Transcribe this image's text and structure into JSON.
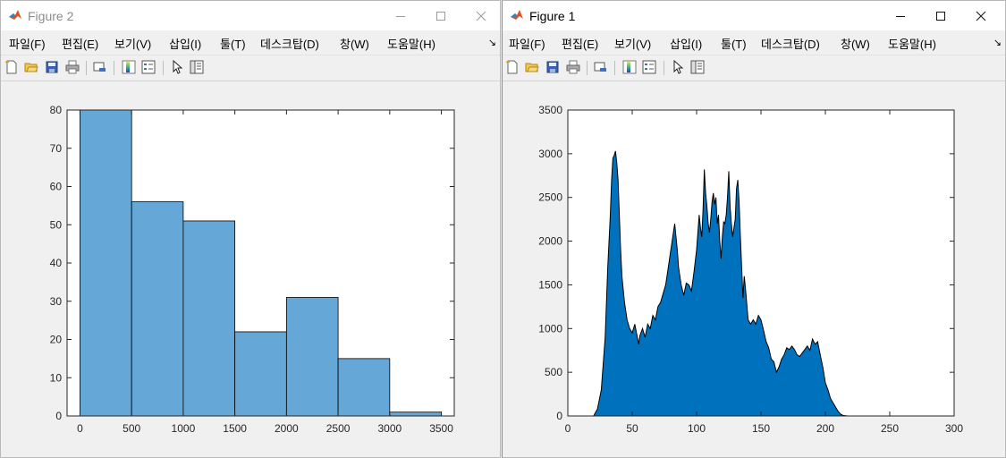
{
  "windows": [
    {
      "title": "Figure 2",
      "menu": [
        "파일(F)",
        "편집(E)",
        "보기(V)",
        "삽입(I)",
        "툴(T)",
        "데스크탑(D)",
        "창(W)",
        "도움말(H)"
      ],
      "toolbar_icons": [
        "new-figure-icon",
        "open-file-icon",
        "save-icon",
        "print-icon",
        "link-plot-icon",
        "insert-colorbar-icon",
        "insert-legend-icon",
        "edit-plot-icon",
        "property-inspector-icon"
      ]
    },
    {
      "title": "Figure 1",
      "menu": [
        "파일(F)",
        "편집(E)",
        "보기(V)",
        "삽입(I)",
        "툴(T)",
        "데스크탑(D)",
        "창(W)",
        "도움말(H)"
      ],
      "toolbar_icons": [
        "new-figure-icon",
        "open-file-icon",
        "save-icon",
        "print-icon",
        "link-plot-icon",
        "insert-colorbar-icon",
        "insert-legend-icon",
        "edit-plot-icon",
        "property-inspector-icon"
      ]
    }
  ],
  "colors": {
    "bar_fill": "#65a8d7",
    "area_fill": "#0072bd",
    "axis": "#262626"
  },
  "chart_data": [
    {
      "type": "bar",
      "figure": "Figure 2",
      "bin_edges": [
        0,
        500,
        1000,
        1500,
        2000,
        2500,
        3000,
        3500
      ],
      "values": [
        80,
        56,
        51,
        22,
        31,
        15,
        1
      ],
      "xlim": [
        -125,
        3625
      ],
      "ylim": [
        0,
        80
      ],
      "xticks": [
        0,
        500,
        1000,
        1500,
        2000,
        2500,
        3000,
        3500
      ],
      "yticks": [
        0,
        10,
        20,
        30,
        40,
        50,
        60,
        70,
        80
      ],
      "grid": false
    },
    {
      "type": "area",
      "figure": "Figure 1",
      "x": [
        0,
        20,
        23,
        26,
        29,
        31,
        33,
        34,
        35,
        36,
        37,
        38,
        39,
        40,
        41,
        42,
        44,
        46,
        48,
        50,
        52,
        54,
        55,
        56,
        58,
        60,
        62,
        64,
        66,
        68,
        70,
        72,
        74,
        76,
        78,
        80,
        82,
        83,
        84,
        85,
        86,
        88,
        90,
        92,
        94,
        96,
        98,
        100,
        101,
        102,
        103,
        104,
        105,
        106,
        107,
        108,
        109,
        110,
        111,
        112,
        113,
        114,
        115,
        116,
        117,
        118,
        119,
        120,
        121,
        122,
        123,
        124,
        125,
        126,
        127,
        128,
        129,
        130,
        131,
        132,
        133,
        134,
        135,
        136,
        137,
        138,
        140,
        142,
        144,
        146,
        148,
        150,
        152,
        154,
        156,
        158,
        160,
        162,
        164,
        166,
        168,
        170,
        172,
        174,
        176,
        178,
        180,
        182,
        184,
        186,
        188,
        190,
        192,
        194,
        196,
        198,
        200,
        202,
        204,
        206,
        208,
        210,
        212,
        214,
        216,
        218,
        220,
        222,
        224,
        226,
        228,
        230,
        235,
        240,
        260,
        280,
        300
      ],
      "y": [
        0,
        0,
        80,
        300,
        900,
        1700,
        2300,
        2700,
        2950,
        2980,
        3030,
        2900,
        2700,
        2300,
        1900,
        1600,
        1300,
        1100,
        1000,
        950,
        1050,
        900,
        820,
        920,
        1000,
        900,
        1050,
        1000,
        1150,
        1100,
        1250,
        1300,
        1400,
        1500,
        1700,
        1900,
        2100,
        2200,
        2050,
        1900,
        1700,
        1500,
        1380,
        1520,
        1500,
        1430,
        1650,
        1900,
        2100,
        2300,
        2150,
        2050,
        2350,
        2820,
        2550,
        2400,
        2200,
        2100,
        2250,
        2450,
        2550,
        2420,
        2500,
        2200,
        2300,
        2000,
        1800,
        2050,
        2220,
        2200,
        2300,
        2500,
        2800,
        2400,
        2200,
        2050,
        2150,
        2250,
        2600,
        2700,
        2450,
        2050,
        1700,
        1350,
        1600,
        1450,
        1100,
        1050,
        1100,
        1050,
        1150,
        1100,
        980,
        850,
        780,
        650,
        620,
        500,
        560,
        650,
        700,
        780,
        760,
        800,
        760,
        700,
        680,
        720,
        760,
        800,
        750,
        880,
        820,
        850,
        700,
        560,
        380,
        300,
        200,
        150,
        100,
        50,
        20,
        5,
        2,
        0,
        0,
        0,
        0,
        0,
        0,
        0,
        0,
        0,
        0,
        0,
        0
      ],
      "xlim": [
        0,
        300
      ],
      "ylim": [
        0,
        3500
      ],
      "xticks": [
        0,
        50,
        100,
        150,
        200,
        250,
        300
      ],
      "yticks": [
        0,
        500,
        1000,
        1500,
        2000,
        2500,
        3000,
        3500
      ],
      "grid": false
    }
  ]
}
